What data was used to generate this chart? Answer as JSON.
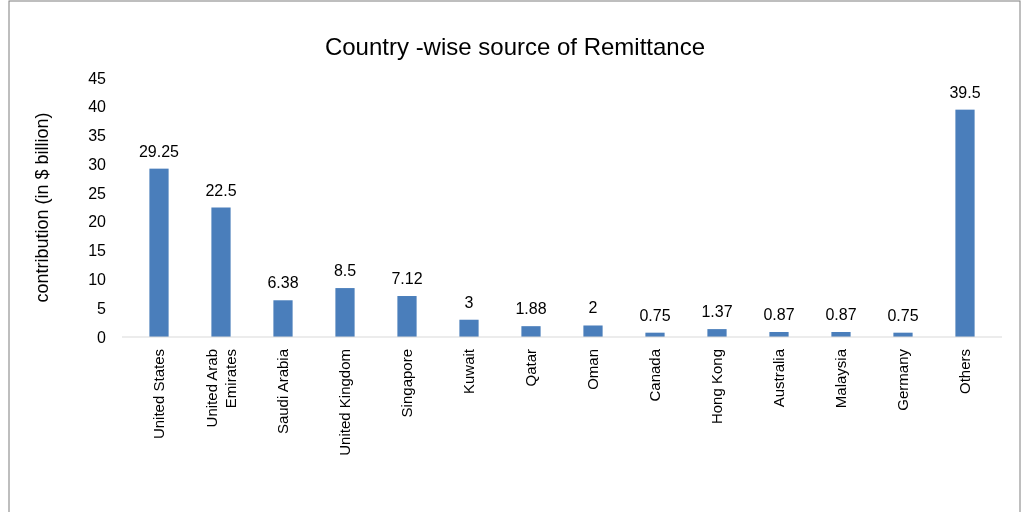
{
  "chart_data": {
    "type": "bar",
    "title": "Country -wise source of Remittance",
    "ylabel": "contribution (in $ billion)",
    "categories": [
      "United States",
      "United Arab Emirates",
      "Saudi Arabia",
      "United Kingdom",
      "Singapore",
      "Kuwait",
      "Qatar",
      "Oman",
      "Canada",
      "Hong Kong",
      "Australia",
      "Malaysia",
      "Germany",
      "Others"
    ],
    "values": [
      29.25,
      22.5,
      6.38,
      8.5,
      7.12,
      3,
      1.88,
      2,
      0.75,
      1.37,
      0.87,
      0.87,
      0.75,
      39.5
    ],
    "color": "#4a7ebb",
    "ylim": [
      0,
      45
    ],
    "yticks": [
      0,
      5,
      10,
      15,
      20,
      25,
      30,
      35,
      40,
      45
    ],
    "data_labels": true
  }
}
